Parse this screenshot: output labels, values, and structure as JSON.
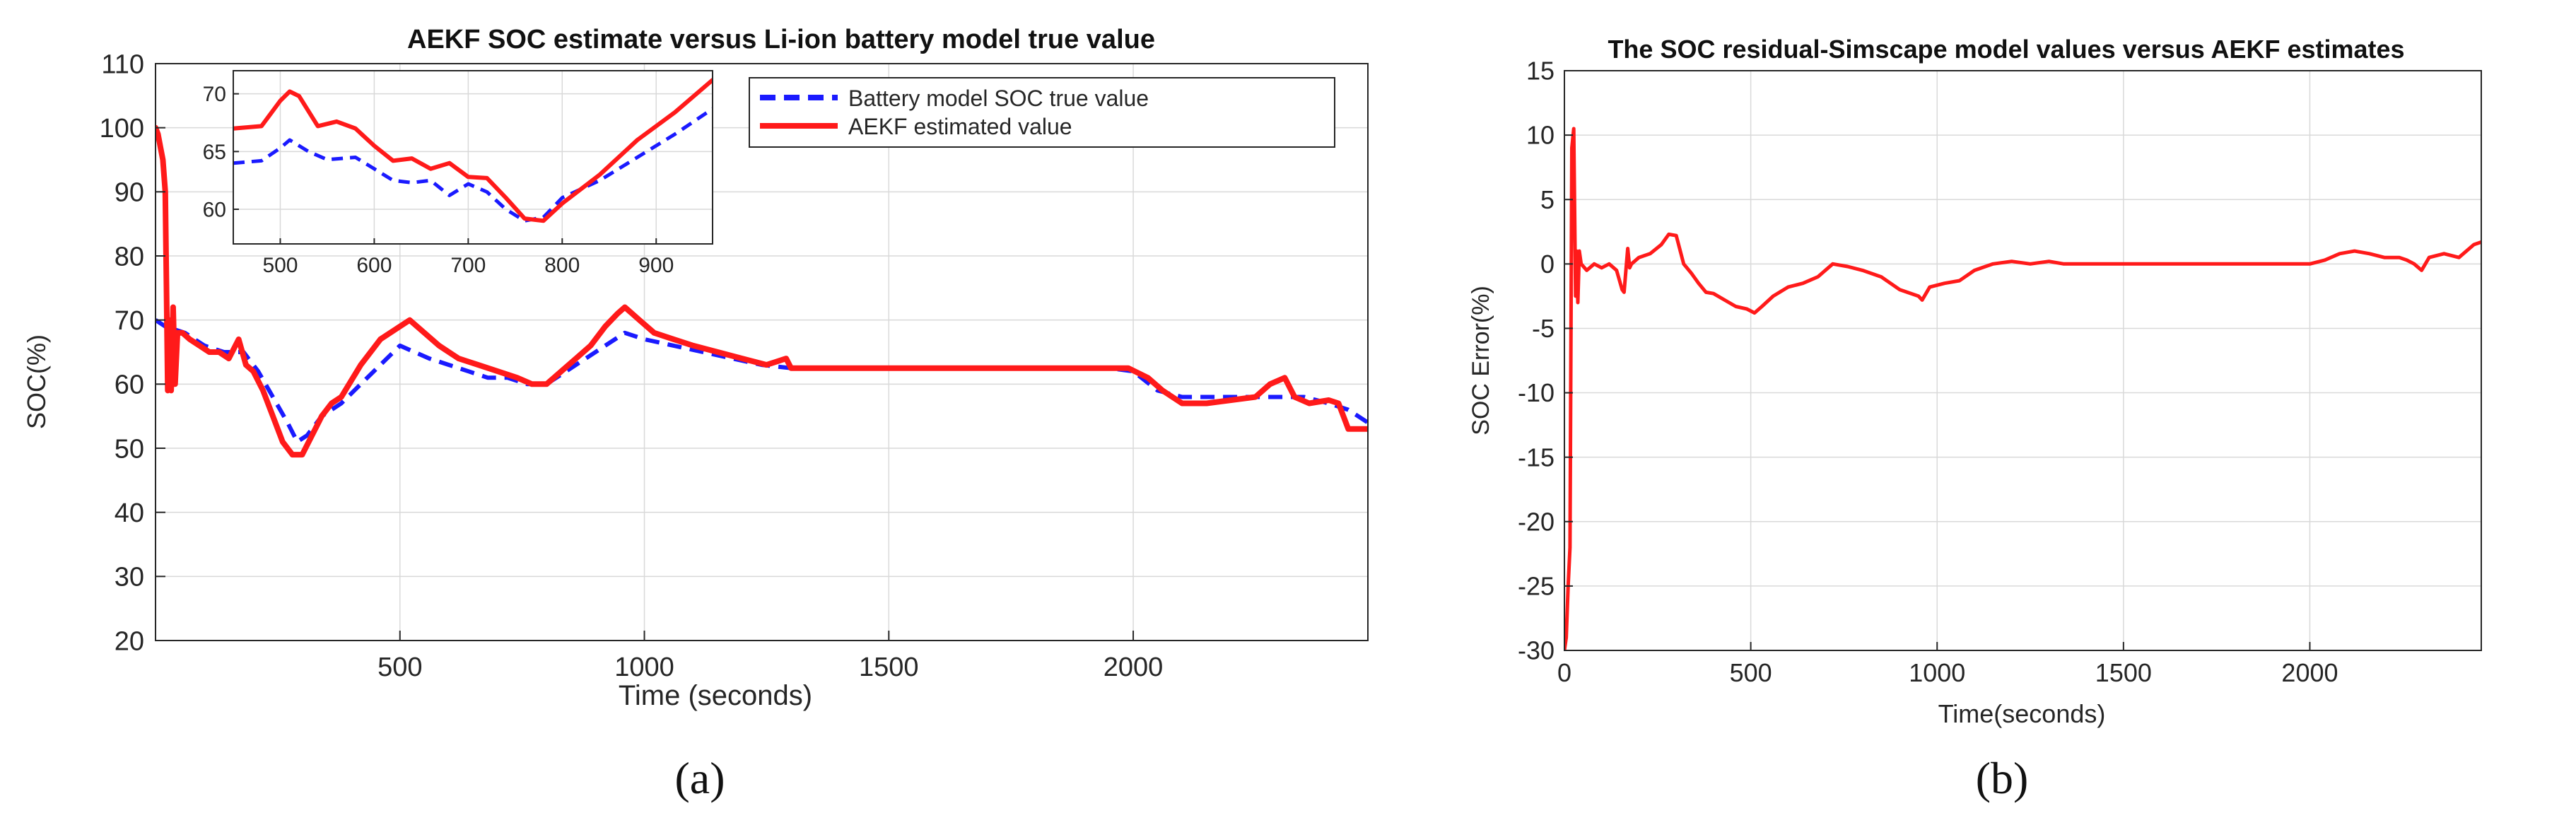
{
  "colors": {
    "true_value": "#1a1aff",
    "estimate": "#ff1a1a",
    "grid": "#d9d9d9",
    "axes": "#262626"
  },
  "chart_data": [
    {
      "id": "a",
      "type": "line",
      "panel_label": "(a)",
      "title": "AEKF SOC estimate versus Li-ion battery model true value",
      "xlabel": "Time (seconds)",
      "ylabel": "SOC(%)",
      "xlim": [
        0,
        2480
      ],
      "ylim": [
        20,
        110
      ],
      "xticks": [
        500,
        1000,
        1500,
        2000
      ],
      "yticks": [
        20,
        30,
        40,
        50,
        60,
        70,
        80,
        90,
        100,
        110
      ],
      "grid": true,
      "legend_position": "top-right",
      "series": [
        {
          "name": "Battery model SOC true value",
          "style": "dashed",
          "color": "#1a1aff",
          "x": [
            0,
            20,
            60,
            100,
            140,
            180,
            210,
            240,
            270,
            290,
            310,
            340,
            380,
            420,
            460,
            500,
            530,
            560,
            600,
            640,
            680,
            720,
            760,
            800,
            840,
            880,
            920,
            960,
            1000,
            1060,
            1120,
            1180,
            1240,
            1300,
            1400,
            1600,
            1800,
            1950,
            2000,
            2050,
            2100,
            2150,
            2200,
            2260,
            2300,
            2350,
            2400,
            2440,
            2480
          ],
          "y": [
            70,
            69,
            68,
            66,
            65,
            65,
            62,
            58,
            54,
            51,
            52,
            55,
            57,
            60,
            63,
            66,
            65,
            64,
            63,
            62,
            61,
            61,
            60,
            60,
            62,
            64,
            66,
            68,
            67,
            66,
            65,
            64,
            63,
            62.5,
            62.5,
            62.5,
            62.5,
            62.5,
            62,
            59,
            58,
            58,
            58,
            58,
            58,
            58,
            57,
            56,
            54
          ]
        },
        {
          "name": "AEKF estimated value",
          "style": "solid",
          "color": "#ff1a1a",
          "x": [
            0,
            5,
            10,
            15,
            20,
            25,
            28,
            32,
            36,
            40,
            45,
            55,
            70,
            90,
            110,
            130,
            150,
            170,
            185,
            200,
            220,
            240,
            260,
            280,
            300,
            320,
            340,
            360,
            380,
            420,
            460,
            500,
            520,
            550,
            580,
            620,
            660,
            700,
            740,
            770,
            800,
            830,
            860,
            890,
            920,
            945,
            960,
            990,
            1020,
            1060,
            1100,
            1150,
            1200,
            1250,
            1290,
            1300,
            1400,
            1600,
            1800,
            1950,
            1990,
            2030,
            2060,
            2100,
            2150,
            2200,
            2250,
            2280,
            2310,
            2330,
            2360,
            2400,
            2420,
            2440,
            2460,
            2480
          ],
          "y": [
            100,
            99,
            97,
            95,
            90,
            59,
            70,
            59,
            72,
            60,
            68,
            68,
            67,
            66,
            65,
            65,
            64,
            67,
            63,
            62,
            59,
            55,
            51,
            49,
            49,
            52,
            55,
            57,
            58,
            63,
            67,
            69,
            70,
            68,
            66,
            64,
            63,
            62,
            61,
            60,
            60,
            62,
            64,
            66,
            69,
            71,
            72,
            70,
            68,
            67,
            66,
            65,
            64,
            63,
            64,
            62.5,
            62.5,
            62.5,
            62.5,
            62.5,
            62.5,
            61,
            59,
            57,
            57,
            57.5,
            58,
            60,
            61,
            58,
            57,
            57.5,
            57,
            53,
            53,
            53
          ]
        }
      ],
      "inset": {
        "type": "line",
        "xlim": [
          450,
          960
        ],
        "ylim": [
          57,
          72
        ],
        "xticks": [
          500,
          600,
          700,
          800,
          900
        ],
        "yticks": [
          60,
          65,
          70
        ],
        "grid": true,
        "series": [
          {
            "name": "Battery model SOC true value",
            "style": "dashed",
            "color": "#1a1aff",
            "x": [
              450,
              480,
              500,
              510,
              530,
              550,
              580,
              600,
              620,
              640,
              660,
              680,
              700,
              720,
              740,
              760,
              780,
              800,
              840,
              880,
              920,
              960
            ],
            "y": [
              64,
              64.2,
              65.3,
              66,
              65,
              64.3,
              64.5,
              63.5,
              62.5,
              62.3,
              62.5,
              61.2,
              62.2,
              61.5,
              60,
              59,
              59.3,
              61,
              62.5,
              64.5,
              66.5,
              68.7
            ]
          },
          {
            "name": "AEKF estimated value",
            "style": "solid",
            "color": "#ff1a1a",
            "x": [
              450,
              480,
              500,
              510,
              520,
              540,
              560,
              580,
              600,
              620,
              640,
              660,
              680,
              700,
              720,
              740,
              760,
              780,
              800,
              840,
              880,
              920,
              960
            ],
            "y": [
              67,
              67.2,
              69.4,
              70.2,
              69.8,
              67.2,
              67.6,
              67,
              65.5,
              64.2,
              64.4,
              63.5,
              64,
              62.8,
              62.7,
              61,
              59.2,
              59,
              60.5,
              63,
              66,
              68.4,
              71.2
            ]
          }
        ]
      }
    },
    {
      "id": "b",
      "type": "line",
      "panel_label": "(b)",
      "title": "The SOC residual-Simscape model values versus AEKF estimates",
      "xlabel": "Time(seconds)",
      "ylabel": "SOC Error(%)",
      "xlim": [
        0,
        2460
      ],
      "ylim": [
        -30,
        15
      ],
      "xticks": [
        0,
        500,
        1000,
        1500,
        2000
      ],
      "yticks": [
        -30,
        -25,
        -20,
        -15,
        -10,
        -5,
        0,
        5,
        10,
        15
      ],
      "grid": true,
      "series": [
        {
          "name": "SOC error",
          "style": "solid",
          "color": "#ff1a1a",
          "x": [
            0,
            5,
            10,
            15,
            20,
            25,
            30,
            33,
            36,
            40,
            45,
            60,
            80,
            100,
            120,
            140,
            155,
            160,
            170,
            175,
            180,
            200,
            230,
            260,
            280,
            300,
            320,
            340,
            360,
            380,
            400,
            430,
            460,
            490,
            510,
            530,
            560,
            600,
            640,
            680,
            720,
            760,
            800,
            850,
            900,
            950,
            960,
            980,
            1020,
            1060,
            1100,
            1150,
            1200,
            1250,
            1300,
            1340,
            1400,
            1600,
            1800,
            2000,
            2040,
            2080,
            2120,
            2160,
            2200,
            2240,
            2260,
            2280,
            2300,
            2320,
            2360,
            2400,
            2440,
            2460
          ],
          "y": [
            -30,
            -29,
            -25,
            -22,
            9,
            10.5,
            -2.5,
            1,
            -3,
            1,
            0,
            -0.5,
            0,
            -0.3,
            0,
            -0.5,
            -2,
            -2.2,
            1.2,
            -0.3,
            0,
            0.5,
            0.8,
            1.5,
            2.3,
            2.2,
            0,
            -0.7,
            -1.5,
            -2.2,
            -2.3,
            -2.8,
            -3.3,
            -3.5,
            -3.8,
            -3.3,
            -2.5,
            -1.8,
            -1.5,
            -1,
            0,
            -0.2,
            -0.5,
            -1,
            -2,
            -2.5,
            -2.8,
            -1.8,
            -1.5,
            -1.3,
            -0.5,
            0,
            0.2,
            0,
            0.2,
            0,
            0,
            0,
            0,
            0,
            0.3,
            0.8,
            1,
            0.8,
            0.5,
            0.5,
            0.3,
            0,
            -0.5,
            0.5,
            0.8,
            0.5,
            1.5,
            1.7
          ]
        }
      ]
    }
  ]
}
